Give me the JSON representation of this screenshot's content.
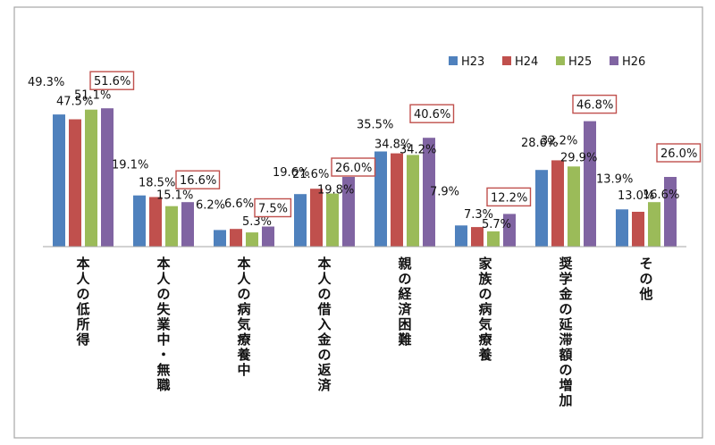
{
  "chart_data": {
    "type": "bar",
    "title": "",
    "xlabel": "",
    "ylabel": "",
    "ylim": [
      0,
      60
    ],
    "grid": false,
    "legend_position": "top-right",
    "categories": [
      "本人の低所得",
      "本人の失業中・無職",
      "本人の病気療養中",
      "本人の借入金の返済",
      "親の経済困難",
      "家族の病気療養",
      "奨学金の延滞額の増加",
      "その他"
    ],
    "series": [
      {
        "name": "H23",
        "color": "#4f81bd",
        "values": [
          49.3,
          19.1,
          6.2,
          19.6,
          35.5,
          7.9,
          28.6,
          13.9
        ]
      },
      {
        "name": "H24",
        "color": "#c0504d",
        "values": [
          47.5,
          18.5,
          6.6,
          21.6,
          34.8,
          7.3,
          32.2,
          13.0
        ]
      },
      {
        "name": "H25",
        "color": "#9bbb59",
        "values": [
          51.1,
          15.1,
          5.3,
          19.8,
          34.2,
          5.7,
          29.9,
          16.6
        ]
      },
      {
        "name": "H26",
        "color": "#8064a2",
        "values": [
          51.6,
          16.6,
          7.5,
          26.0,
          40.6,
          12.2,
          46.8,
          26.0
        ]
      }
    ],
    "labels": [
      [
        "49.3%",
        "19.1%",
        "6.2%",
        "19.6%",
        "35.5%",
        "7.9%",
        "28.6%",
        "13.9%"
      ],
      [
        "47.5%",
        "18.5%",
        "6.6%",
        "21.6%",
        "34.8%",
        "7.3%",
        "32.2%",
        "13.0%"
      ],
      [
        "51.1%",
        "15.1%",
        "5.3%",
        "19.8%",
        "34.2%",
        "5.7%",
        "29.9%",
        "16.6%"
      ],
      [
        "51.6%",
        "16.6%",
        "7.5%",
        "26.0%",
        "40.6%",
        "12.2%",
        "46.8%",
        "26.0%"
      ]
    ],
    "annotations": "H26 value labels are highlighted with red boxes",
    "highlight_color": "#c0504d"
  }
}
